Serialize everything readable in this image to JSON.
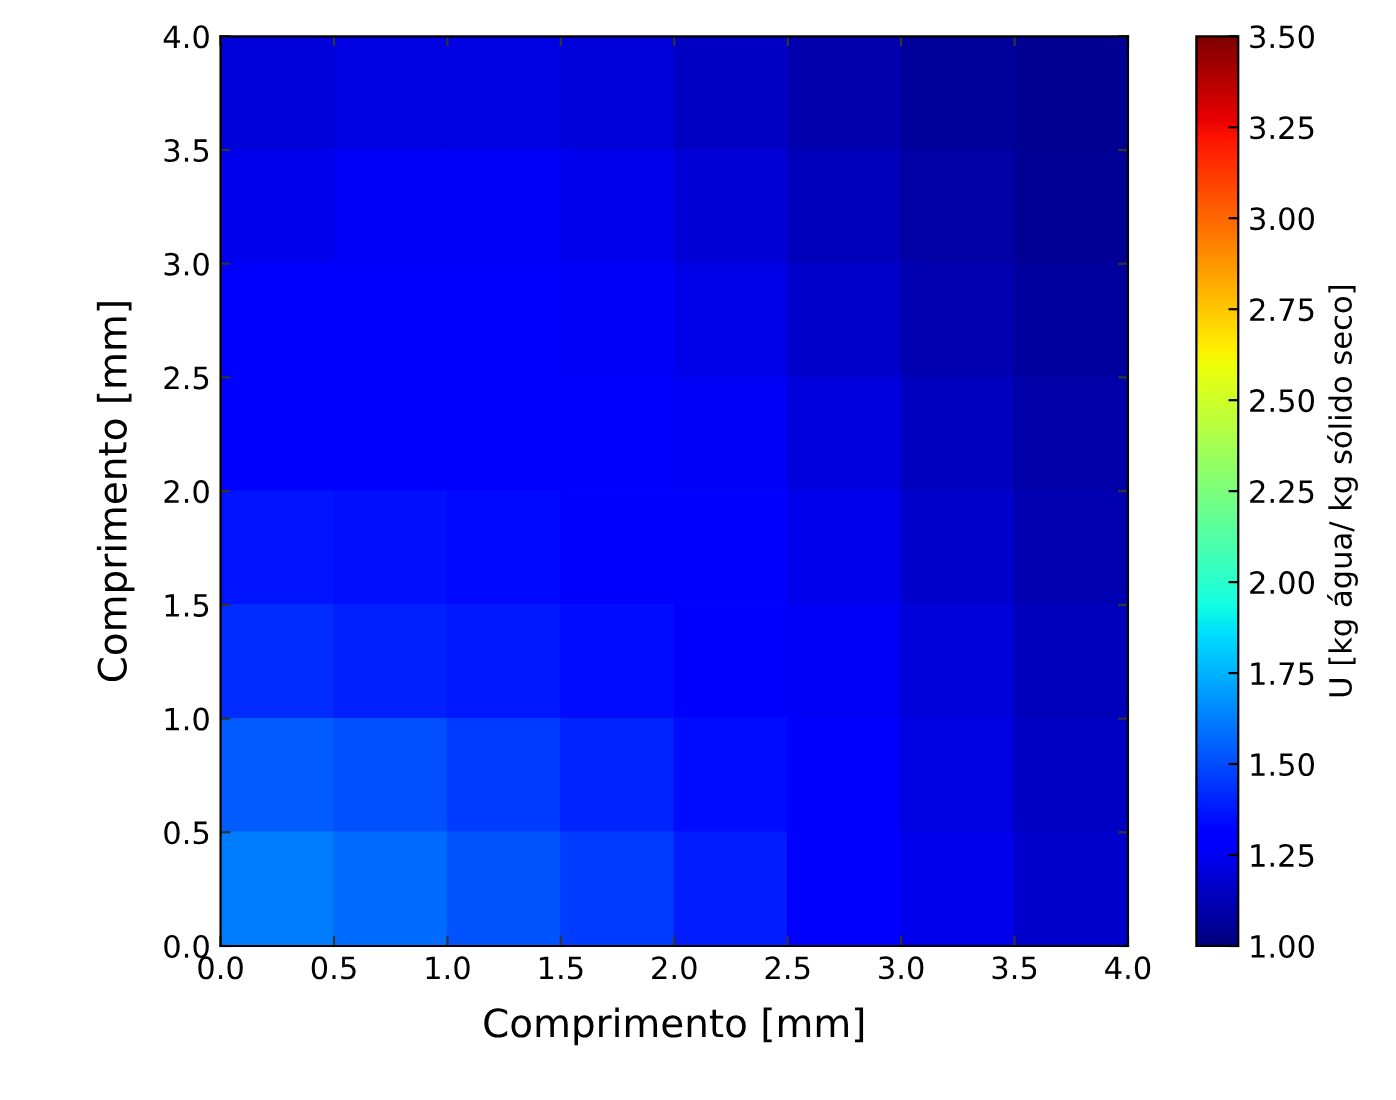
{
  "chart_data": {
    "type": "heatmap",
    "xlabel": "Comprimento [mm]",
    "ylabel": "Comprimento [mm]",
    "clabel": "U [kg água/ kg sólido seco]",
    "x": [
      0.25,
      0.75,
      1.25,
      1.75,
      2.25,
      2.75,
      3.25,
      3.75
    ],
    "y": [
      3.75,
      3.25,
      2.75,
      2.25,
      1.75,
      1.25,
      0.75,
      0.25
    ],
    "xlim": [
      0,
      4
    ],
    "ylim": [
      0,
      4
    ],
    "xticks": [
      {
        "value": 0,
        "label": "0.0"
      },
      {
        "value": 0.5,
        "label": "0.5"
      },
      {
        "value": 1,
        "label": "1.0"
      },
      {
        "value": 1.5,
        "label": "1.5"
      },
      {
        "value": 2,
        "label": "2.0"
      },
      {
        "value": 2.5,
        "label": "2.5"
      },
      {
        "value": 3,
        "label": "3.0"
      },
      {
        "value": 3.5,
        "label": "3.5"
      },
      {
        "value": 4,
        "label": "4.0"
      }
    ],
    "yticks": [
      {
        "value": 0,
        "label": "0.0"
      },
      {
        "value": 0.5,
        "label": "0.5"
      },
      {
        "value": 1,
        "label": "1.0"
      },
      {
        "value": 1.5,
        "label": "1.5"
      },
      {
        "value": 2,
        "label": "2.0"
      },
      {
        "value": 2.5,
        "label": "2.5"
      },
      {
        "value": 3,
        "label": "3.0"
      },
      {
        "value": 3.5,
        "label": "3.5"
      },
      {
        "value": 4,
        "label": "4.0"
      }
    ],
    "clim": [
      1.0,
      3.5
    ],
    "cticks": [
      {
        "value": 1.0,
        "label": "1.00"
      },
      {
        "value": 1.25,
        "label": "1.25"
      },
      {
        "value": 1.5,
        "label": "1.50"
      },
      {
        "value": 1.75,
        "label": "1.75"
      },
      {
        "value": 2.0,
        "label": "2.00"
      },
      {
        "value": 2.25,
        "label": "2.25"
      },
      {
        "value": 2.5,
        "label": "2.50"
      },
      {
        "value": 2.75,
        "label": "2.75"
      },
      {
        "value": 3.0,
        "label": "3.00"
      },
      {
        "value": 3.25,
        "label": "3.25"
      },
      {
        "value": 3.5,
        "label": "3.50"
      }
    ],
    "cells": [
      [
        1.2,
        1.22,
        1.22,
        1.2,
        1.15,
        1.1,
        1.06,
        1.04
      ],
      [
        1.24,
        1.26,
        1.26,
        1.24,
        1.19,
        1.13,
        1.08,
        1.05
      ],
      [
        1.28,
        1.29,
        1.29,
        1.27,
        1.23,
        1.17,
        1.11,
        1.07
      ],
      [
        1.32,
        1.32,
        1.31,
        1.29,
        1.26,
        1.21,
        1.14,
        1.09
      ],
      [
        1.37,
        1.36,
        1.34,
        1.32,
        1.28,
        1.24,
        1.17,
        1.11
      ],
      [
        1.42,
        1.4,
        1.38,
        1.35,
        1.31,
        1.26,
        1.2,
        1.13
      ],
      [
        1.54,
        1.51,
        1.46,
        1.41,
        1.35,
        1.29,
        1.22,
        1.15
      ],
      [
        1.62,
        1.58,
        1.52,
        1.46,
        1.39,
        1.31,
        1.24,
        1.17
      ]
    ]
  }
}
